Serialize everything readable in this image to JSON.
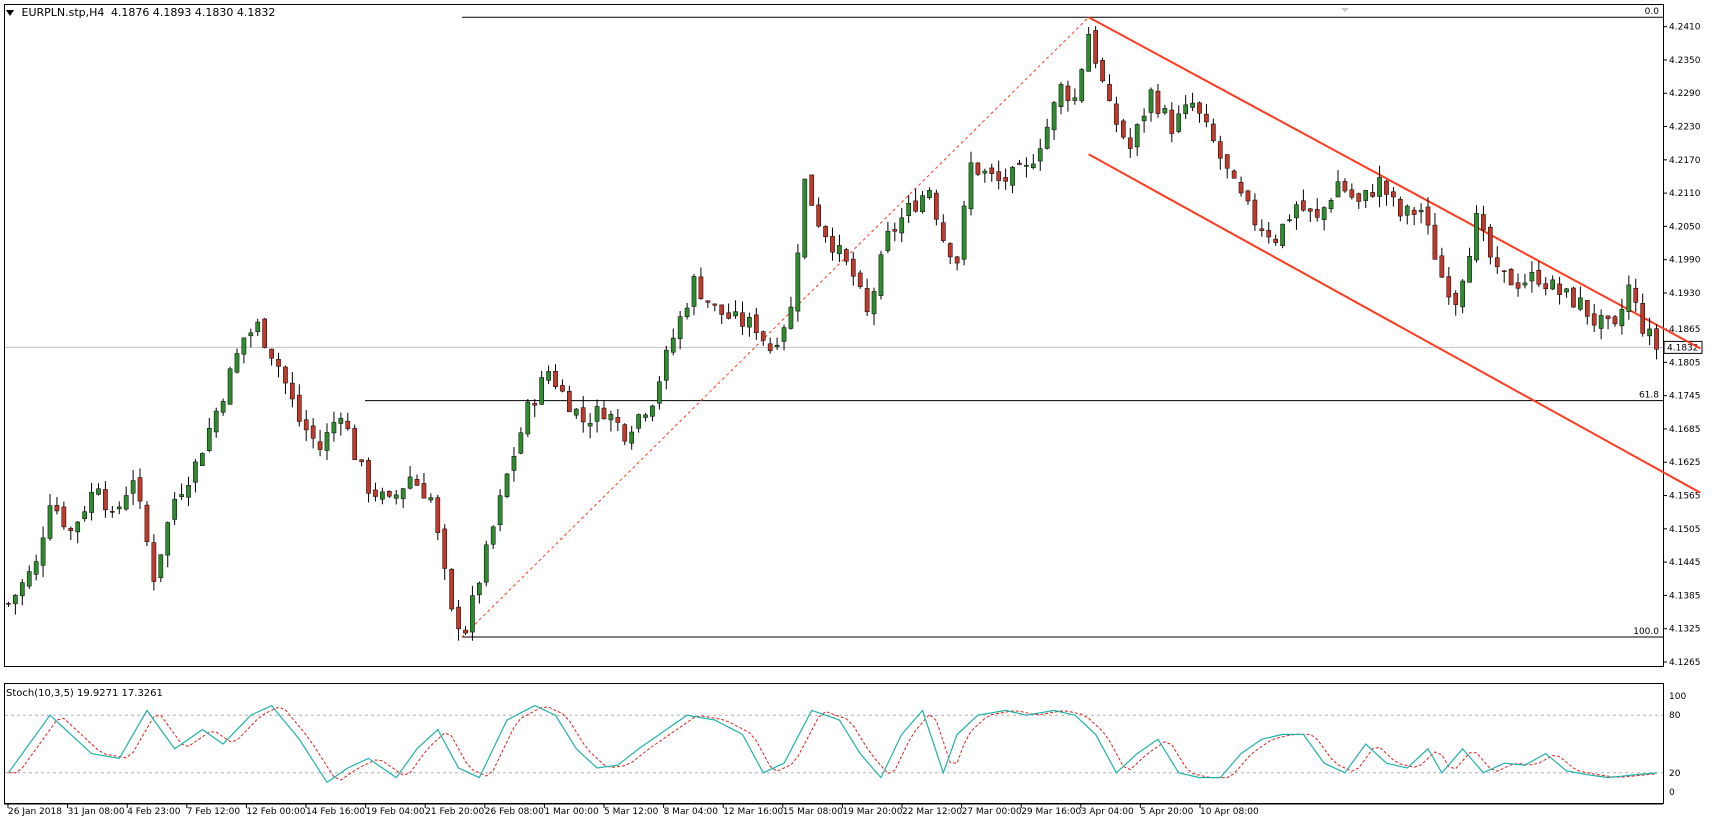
{
  "window": {
    "symbol": "EURPLN.stp,H4",
    "ohlc": "4.1876 4.1893 4.1830 4.1832"
  },
  "price_axis": {
    "ticks": [
      "4.2410",
      "4.2350",
      "4.2290",
      "4.2230",
      "4.2170",
      "4.2110",
      "4.2050",
      "4.1990",
      "4.1930",
      "4.1865",
      "4.1805",
      "4.1745",
      "4.1685",
      "4.1625",
      "4.1565",
      "4.1505",
      "4.1445",
      "4.1385",
      "4.1325",
      "4.1265"
    ],
    "current_price": "4.1832"
  },
  "time_axis": {
    "labels": [
      "26 Jan 2018",
      "31 Jan 08:00",
      "4 Feb 23:00",
      "7 Feb 12:00",
      "12 Feb 00:00",
      "14 Feb 16:00",
      "19 Feb 04:00",
      "21 Feb 20:00",
      "26 Feb 08:00",
      "1 Mar 00:00",
      "5 Mar 12:00",
      "8 Mar 04:00",
      "12 Mar 16:00",
      "15 Mar 08:00",
      "19 Mar 20:00",
      "22 Mar 12:00",
      "27 Mar 00:00",
      "29 Mar 16:00",
      "3 Apr 04:00",
      "5 Apr 20:00",
      "10 Apr 08:00"
    ]
  },
  "fibonacci": {
    "level_0": "0.0",
    "level_618": "61.8",
    "level_100": "100.0"
  },
  "oscillator": {
    "title": "Stoch(10,3,5) 19.9271 17.3261",
    "ticks": [
      "100",
      "80",
      "20",
      "0"
    ]
  },
  "colors": {
    "bull": "#2e8b2e",
    "bear": "#c0392b",
    "channel": "#ff3b1f",
    "stoch_main": "#20b2aa",
    "stoch_signal": "#e0201f"
  },
  "chart_data": {
    "type": "candlestick",
    "title": "EURPLN.stp,H4",
    "ylim": [
      4.1265,
      4.244
    ],
    "stoch_ylim": [
      0,
      100
    ],
    "path_anchors": [
      [
        0,
        4.137
      ],
      [
        4,
        4.144
      ],
      [
        6,
        4.156
      ],
      [
        9,
        4.15
      ],
      [
        13,
        4.159
      ],
      [
        15,
        4.152
      ],
      [
        18,
        4.16
      ],
      [
        21,
        4.142
      ],
      [
        24,
        4.156
      ],
      [
        27,
        4.162
      ],
      [
        31,
        4.175
      ],
      [
        34,
        4.185
      ],
      [
        36,
        4.187
      ],
      [
        39,
        4.18
      ],
      [
        42,
        4.17
      ],
      [
        45,
        4.165
      ],
      [
        48,
        4.172
      ],
      [
        50,
        4.164
      ],
      [
        52,
        4.158
      ],
      [
        55,
        4.155
      ],
      [
        58,
        4.16
      ],
      [
        61,
        4.156
      ],
      [
        64,
        4.135
      ],
      [
        66,
        4.1325
      ],
      [
        69,
        4.146
      ],
      [
        72,
        4.16
      ],
      [
        75,
        4.172
      ],
      [
        78,
        4.179
      ],
      [
        80,
        4.175
      ],
      [
        83,
        4.17
      ],
      [
        86,
        4.172
      ],
      [
        89,
        4.168
      ],
      [
        93,
        4.174
      ],
      [
        96,
        4.185
      ],
      [
        99,
        4.195
      ],
      [
        102,
        4.19
      ],
      [
        105,
        4.188
      ],
      [
        108,
        4.187
      ],
      [
        110,
        4.183
      ],
      [
        113,
        4.19
      ],
      [
        115,
        4.213
      ],
      [
        117,
        4.206
      ],
      [
        119,
        4.202
      ],
      [
        122,
        4.196
      ],
      [
        124,
        4.189
      ],
      [
        127,
        4.203
      ],
      [
        130,
        4.208
      ],
      [
        133,
        4.212
      ],
      [
        135,
        4.203
      ],
      [
        137,
        4.199
      ],
      [
        139,
        4.216
      ],
      [
        143,
        4.213
      ],
      [
        147,
        4.215
      ],
      [
        150,
        4.223
      ],
      [
        152,
        4.23
      ],
      [
        154,
        4.228
      ],
      [
        156,
        4.24
      ],
      [
        159,
        4.226
      ],
      [
        162,
        4.219
      ],
      [
        165,
        4.229
      ],
      [
        168,
        4.223
      ],
      [
        171,
        4.227
      ],
      [
        174,
        4.22
      ],
      [
        177,
        4.212
      ],
      [
        180,
        4.206
      ],
      [
        183,
        4.203
      ],
      [
        186,
        4.209
      ],
      [
        189,
        4.206
      ],
      [
        192,
        4.213
      ],
      [
        195,
        4.209
      ],
      [
        198,
        4.213
      ],
      [
        201,
        4.207
      ],
      [
        204,
        4.208
      ],
      [
        207,
        4.196
      ],
      [
        209,
        4.192
      ],
      [
        212,
        4.206
      ],
      [
        215,
        4.196
      ],
      [
        218,
        4.195
      ],
      [
        221,
        4.196
      ],
      [
        224,
        4.193
      ],
      [
        227,
        4.191
      ],
      [
        229,
        4.188
      ],
      [
        232,
        4.186
      ],
      [
        234,
        4.194
      ],
      [
        236,
        4.187
      ],
      [
        238,
        4.1832
      ]
    ],
    "stoch_anchors": [
      [
        0,
        20
      ],
      [
        6,
        80
      ],
      [
        12,
        40
      ],
      [
        16,
        35
      ],
      [
        20,
        85
      ],
      [
        24,
        45
      ],
      [
        28,
        65
      ],
      [
        31,
        50
      ],
      [
        35,
        80
      ],
      [
        38,
        90
      ],
      [
        42,
        55
      ],
      [
        46,
        10
      ],
      [
        49,
        25
      ],
      [
        52,
        35
      ],
      [
        56,
        15
      ],
      [
        59,
        45
      ],
      [
        62,
        65
      ],
      [
        65,
        25
      ],
      [
        68,
        15
      ],
      [
        72,
        75
      ],
      [
        76,
        90
      ],
      [
        79,
        80
      ],
      [
        82,
        45
      ],
      [
        85,
        25
      ],
      [
        88,
        28
      ],
      [
        91,
        45
      ],
      [
        94,
        60
      ],
      [
        98,
        80
      ],
      [
        102,
        75
      ],
      [
        106,
        60
      ],
      [
        109,
        20
      ],
      [
        112,
        30
      ],
      [
        116,
        85
      ],
      [
        120,
        75
      ],
      [
        123,
        40
      ],
      [
        126,
        15
      ],
      [
        129,
        60
      ],
      [
        132,
        85
      ],
      [
        135,
        20
      ],
      [
        137,
        60
      ],
      [
        140,
        80
      ],
      [
        144,
        85
      ],
      [
        147,
        80
      ],
      [
        151,
        85
      ],
      [
        154,
        80
      ],
      [
        157,
        60
      ],
      [
        160,
        20
      ],
      [
        163,
        40
      ],
      [
        166,
        55
      ],
      [
        169,
        20
      ],
      [
        172,
        15
      ],
      [
        175,
        15
      ],
      [
        178,
        40
      ],
      [
        181,
        55
      ],
      [
        184,
        60
      ],
      [
        187,
        60
      ],
      [
        190,
        30
      ],
      [
        193,
        20
      ],
      [
        196,
        50
      ],
      [
        199,
        30
      ],
      [
        202,
        25
      ],
      [
        205,
        45
      ],
      [
        207,
        20
      ],
      [
        210,
        45
      ],
      [
        213,
        20
      ],
      [
        216,
        30
      ],
      [
        219,
        28
      ],
      [
        222,
        40
      ],
      [
        225,
        22
      ],
      [
        228,
        18
      ],
      [
        231,
        15
      ],
      [
        235,
        18
      ],
      [
        238,
        19.93
      ]
    ],
    "fib_0_price": 4.2427,
    "fib_618_price": 4.1736,
    "fib_100_price": 4.131,
    "channel_upper": [
      [
        4.2427,
        156
      ],
      [
        4.183,
        227
      ]
    ],
    "channel_lower": [
      [
        4.218,
        156
      ],
      [
        4.157,
        227
      ]
    ]
  }
}
